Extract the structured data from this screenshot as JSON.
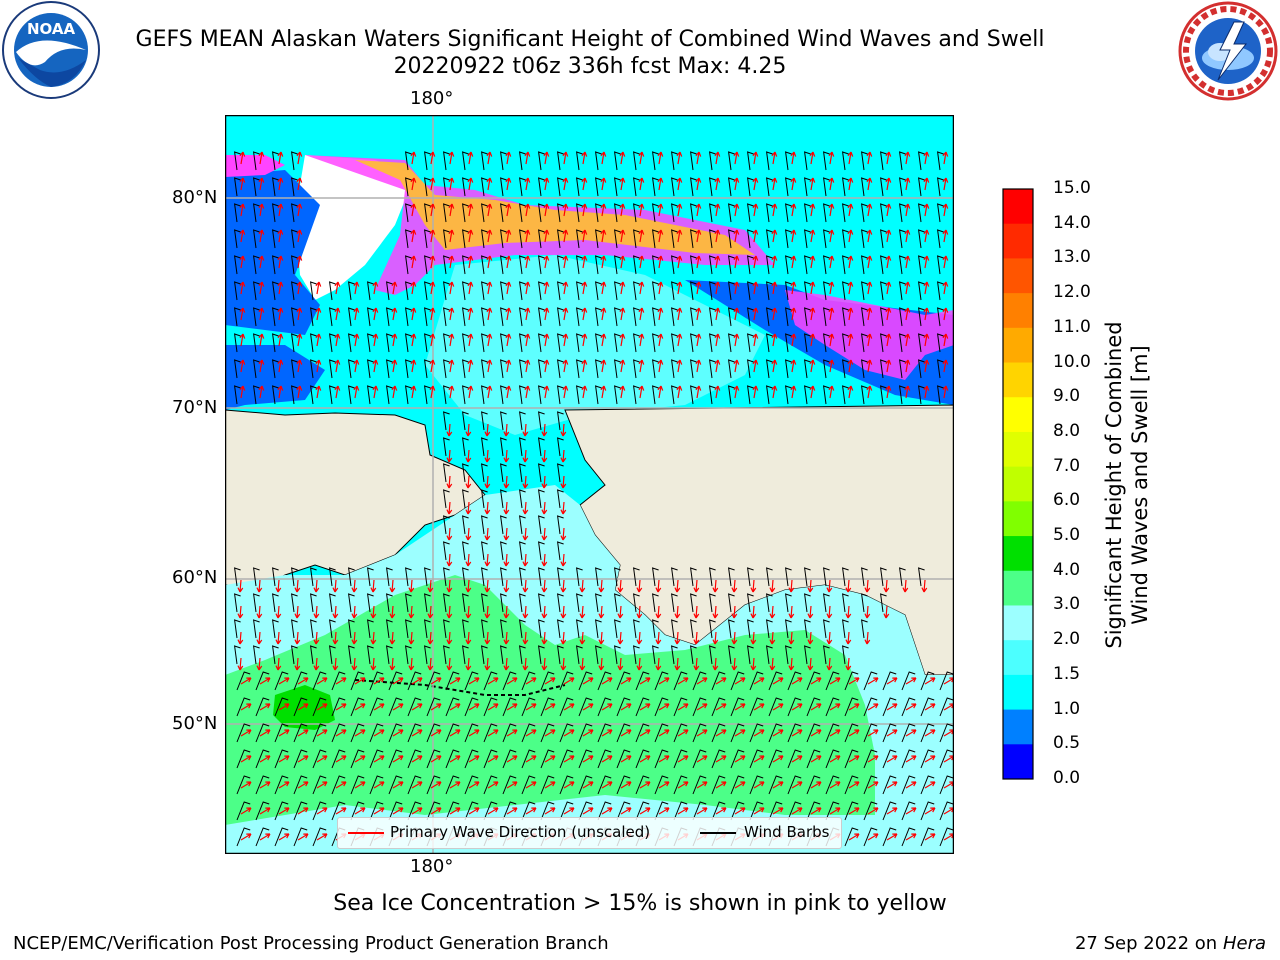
{
  "header": {
    "title_line1": "GEFS MEAN Alaskan Waters Significant Height of Combined Wind Waves and Swell",
    "title_line2": "20220922 t06z 336h fcst   Max: 4.25"
  },
  "logos": {
    "left": {
      "icon": "noaa-logo-icon",
      "text": "NOAA"
    },
    "right": {
      "icon": "national-weather-service-logo-icon"
    }
  },
  "map": {
    "lon_label_top": "180°",
    "lon_label_bottom": "180°",
    "lat_labels": [
      "80°N",
      "70°N",
      "60°N",
      "50°N"
    ],
    "colors": {
      "land": "#efecdc",
      "ocean_low": "#00ffff",
      "ocean_mid": "#9cffff",
      "ocean_high": "#4cff88",
      "ocean_peak": "#00e000",
      "deep_blue": "#0066ff",
      "ice_pink": "#ff44ff",
      "ice_yellow": "#ffe100",
      "wave_arrow": "#ff0000",
      "wind_barb": "#000000"
    }
  },
  "legend": {
    "wave_label": "Primary Wave Direction (unscaled)",
    "barb_label": "Wind Barbs"
  },
  "colorbar": {
    "label_line1": "Significant Height of Combined",
    "label_line2": "Wind Waves and Swell [m]",
    "ticks": [
      "15.0",
      "14.0",
      "13.0",
      "12.0",
      "11.0",
      "10.0",
      "9.0",
      "8.0",
      "7.0",
      "6.0",
      "5.0",
      "4.0",
      "3.0",
      "2.0",
      "1.5",
      "1.0",
      "0.5",
      "0.0"
    ],
    "colors_top_to_bottom": [
      "#ff0000",
      "#ff2a00",
      "#ff5500",
      "#ff8000",
      "#ffaa00",
      "#ffd400",
      "#ffff00",
      "#e0ff00",
      "#c0ff00",
      "#80ff00",
      "#00e000",
      "#4cff88",
      "#9cffff",
      "#4cffff",
      "#00ffff",
      "#0080ff",
      "#0000ff"
    ]
  },
  "notes": {
    "ice": "Sea Ice Concentration > 15% is shown in pink to yellow"
  },
  "footer": {
    "left": "NCEP/EMC/Verification Post Processing Product Generation Branch",
    "date": "27 Sep 2022 on",
    "machine": "Hera"
  }
}
